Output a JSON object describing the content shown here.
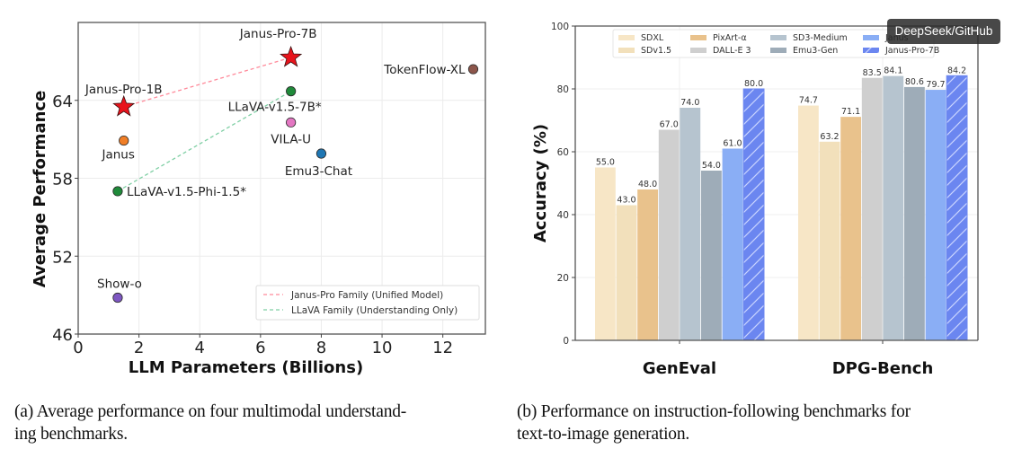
{
  "chart_data": [
    {
      "type": "scatter",
      "xlabel": "LLM Parameters (Billions)",
      "ylabel": "Average Performance",
      "xlim": [
        0,
        13.4
      ],
      "ylim": [
        46,
        70
      ],
      "xticks": [
        0,
        2,
        4,
        6,
        8,
        10,
        12
      ],
      "yticks": [
        46,
        52,
        58,
        64
      ],
      "grid": true,
      "points": [
        {
          "label": "Janus-Pro-1B",
          "x": 1.5,
          "y": 63.5,
          "marker": "star",
          "color": "#e8141c"
        },
        {
          "label": "Janus-Pro-7B",
          "x": 7.0,
          "y": 67.3,
          "marker": "star",
          "color": "#e8141c"
        },
        {
          "label": "Janus",
          "x": 1.5,
          "y": 60.9,
          "marker": "circle",
          "color": "#f07e26"
        },
        {
          "label": "LLaVA-v1.5-Phi-1.5*",
          "x": 1.3,
          "y": 57.0,
          "marker": "circle",
          "color": "#1f8a3a"
        },
        {
          "label": "LLaVA-v1.5-7B*",
          "x": 7.0,
          "y": 64.7,
          "marker": "circle",
          "color": "#1f8a3a"
        },
        {
          "label": "VILA-U",
          "x": 7.0,
          "y": 62.3,
          "marker": "circle",
          "color": "#e377c2"
        },
        {
          "label": "Emu3-Chat",
          "x": 8.0,
          "y": 59.9,
          "marker": "circle",
          "color": "#1f77b4"
        },
        {
          "label": "TokenFlow-XL",
          "x": 13.0,
          "y": 66.4,
          "marker": "circle",
          "color": "#8c564b"
        },
        {
          "label": "Show-o",
          "x": 1.3,
          "y": 48.8,
          "marker": "circle",
          "color": "#7e57c2"
        }
      ],
      "lines": [
        {
          "name": "Janus-Pro Family (Unified Model)",
          "from": "Janus-Pro-1B",
          "to": "Janus-Pro-7B",
          "color": "#ff8a9a",
          "style": "dashed"
        },
        {
          "name": "LLaVA Family (Understanding Only)",
          "from": "LLaVA-v1.5-Phi-1.5*",
          "to": "LLaVA-v1.5-7B*",
          "color": "#7fcfa4",
          "style": "dashed"
        }
      ],
      "legend": {
        "placement": "lower-right",
        "entries": [
          "Janus-Pro Family (Unified Model)",
          "LLaVA Family (Understanding Only)"
        ]
      }
    },
    {
      "type": "bar",
      "ylabel": "Accuracy (%)",
      "xlabel": "",
      "ylim": [
        0,
        100
      ],
      "yticks": [
        0,
        20,
        40,
        60,
        80,
        100
      ],
      "categories": [
        "GenEval",
        "DPG-Bench"
      ],
      "grid": true,
      "series": [
        {
          "name": "SDXL",
          "values": [
            55.0,
            74.7
          ],
          "color": "#f7e6c6",
          "hatch": false
        },
        {
          "name": "SDv1.5",
          "values": [
            43.0,
            63.2
          ],
          "color": "#f2e0bb",
          "hatch": false
        },
        {
          "name": "PixArt-α",
          "values": [
            48.0,
            71.1
          ],
          "color": "#e9c28c",
          "hatch": false
        },
        {
          "name": "DALL-E 3",
          "values": [
            67.0,
            83.5
          ],
          "color": "#cfcfcf",
          "hatch": false
        },
        {
          "name": "SD3-Medium",
          "values": [
            74.0,
            84.1
          ],
          "color": "#b6c4cf",
          "hatch": false
        },
        {
          "name": "Emu3-Gen",
          "values": [
            54.0,
            80.6
          ],
          "color": "#9eacb8",
          "hatch": false
        },
        {
          "name": "Janus",
          "values": [
            61.0,
            79.7
          ],
          "color": "#8aaef5",
          "hatch": false
        },
        {
          "name": "Janus-Pro-7B",
          "values": [
            80.0,
            84.2
          ],
          "color": "#6b86f0",
          "hatch": true
        }
      ],
      "legend": {
        "placement": "top",
        "columns": 4
      }
    }
  ],
  "captions": {
    "a": "(a) Average performance on four multimodal understanding benchmarks.",
    "a_line1": "(a)  Average performance on four multimodal understand-",
    "a_line2": "ing benchmarks.",
    "b_line1": "(b)  Performance on instruction-following benchmarks for",
    "b_line2": "text-to-image generation."
  },
  "watermark": "DeepSeek/GitHub"
}
